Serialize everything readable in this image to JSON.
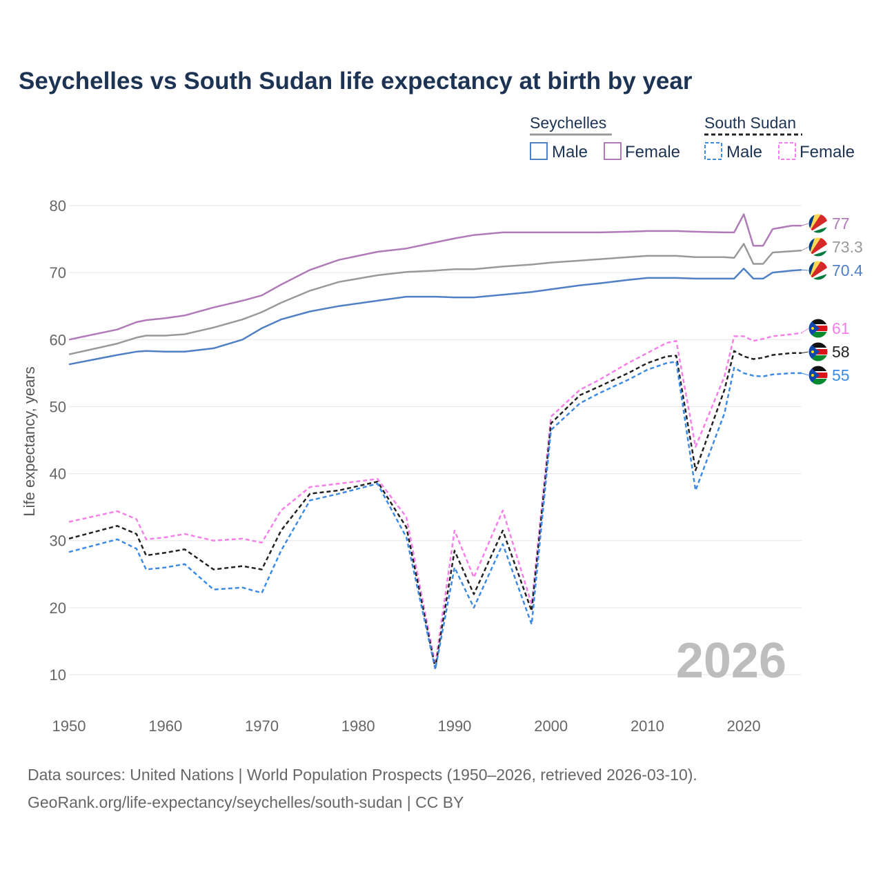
{
  "chart_data": {
    "type": "line",
    "title": "Seychelles vs South Sudan life expectancy at birth by year",
    "ylabel": "Life expectancy, years",
    "xlabel": "",
    "xlim": [
      1950,
      2026
    ],
    "ylim": [
      10,
      80
    ],
    "x_ticks": [
      "1950",
      "1960",
      "1970",
      "1980",
      "1990",
      "2000",
      "2010",
      "2020"
    ],
    "y_ticks": [
      "10",
      "20",
      "30",
      "40",
      "50",
      "60",
      "70",
      "80"
    ],
    "watermark_year": "2026",
    "legend": {
      "groups": [
        {
          "name": "Seychelles",
          "items": [
            "Male",
            "Female"
          ],
          "style": "solid"
        },
        {
          "name": "South Sudan",
          "items": [
            "Male",
            "Female"
          ],
          "style": "dashed"
        }
      ]
    },
    "x_anchor": [
      1950,
      1955,
      1957,
      1958,
      1960,
      1962,
      1965,
      1968,
      1970,
      1972,
      1975,
      1978,
      1982,
      1985,
      1988,
      1990,
      1992,
      1995,
      1998,
      2000,
      2003,
      2005,
      2008,
      2010,
      2012,
      2013,
      2015,
      2018,
      2019,
      2020,
      2021,
      2022,
      2023,
      2025,
      2026
    ],
    "series": [
      {
        "name": "Seychelles Female",
        "country": "Seychelles",
        "sex": "Female",
        "color": "#b07ab8",
        "dash": "solid",
        "end_label": "77",
        "values": [
          60.0,
          61.5,
          62.6,
          62.9,
          63.2,
          63.6,
          64.8,
          65.8,
          66.6,
          68.2,
          70.4,
          71.9,
          73.1,
          73.6,
          74.5,
          75.1,
          75.6,
          76.0,
          76.0,
          76.0,
          76.0,
          76.0,
          76.1,
          76.2,
          76.2,
          76.2,
          76.1,
          76.0,
          76.0,
          78.7,
          74.0,
          74.0,
          76.5,
          77.0,
          77.0
        ]
      },
      {
        "name": "Seychelles Both",
        "country": "Seychelles",
        "sex": "Both",
        "color": "#999999",
        "dash": "solid",
        "end_label": "73.3",
        "values": [
          57.8,
          59.4,
          60.3,
          60.6,
          60.6,
          60.8,
          61.8,
          63.0,
          64.1,
          65.5,
          67.3,
          68.6,
          69.6,
          70.1,
          70.3,
          70.5,
          70.5,
          70.9,
          71.2,
          71.5,
          71.8,
          72.0,
          72.3,
          72.5,
          72.5,
          72.5,
          72.3,
          72.3,
          72.2,
          74.3,
          71.3,
          71.3,
          73.0,
          73.2,
          73.3
        ]
      },
      {
        "name": "Seychelles Male",
        "country": "Seychelles",
        "sex": "Male",
        "color": "#4f7fc4",
        "dash": "solid",
        "end_label": "70.4",
        "values": [
          56.3,
          57.7,
          58.2,
          58.3,
          58.2,
          58.2,
          58.7,
          60.0,
          61.7,
          63.0,
          64.2,
          65.0,
          65.8,
          66.4,
          66.4,
          66.3,
          66.3,
          66.7,
          67.1,
          67.5,
          68.1,
          68.4,
          68.9,
          69.2,
          69.2,
          69.2,
          69.1,
          69.1,
          69.1,
          70.6,
          69.1,
          69.1,
          70.0,
          70.3,
          70.4
        ]
      },
      {
        "name": "South Sudan Female",
        "country": "South Sudan",
        "sex": "Female",
        "color": "#f47fe8",
        "dash": "dashed",
        "end_label": "61",
        "values": [
          32.8,
          34.4,
          33.2,
          30.2,
          30.5,
          31.0,
          30.0,
          30.3,
          29.7,
          34.5,
          38.0,
          38.5,
          39.2,
          33.5,
          11.5,
          31.5,
          24.5,
          34.5,
          20.5,
          48.5,
          52.5,
          54.0,
          56.5,
          58.0,
          59.5,
          59.8,
          44.0,
          54.5,
          60.5,
          60.5,
          59.8,
          60.1,
          60.5,
          60.8,
          61.0
        ]
      },
      {
        "name": "South Sudan Both",
        "country": "South Sudan",
        "sex": "Both",
        "color": "#222222",
        "dash": "dashed",
        "end_label": "58",
        "values": [
          30.3,
          32.2,
          31.0,
          27.8,
          28.2,
          28.7,
          25.7,
          26.2,
          25.7,
          31.5,
          37.0,
          37.5,
          38.8,
          32.0,
          11.0,
          28.5,
          22.0,
          31.5,
          19.5,
          47.5,
          51.7,
          53.0,
          55.0,
          56.5,
          57.5,
          57.6,
          40.5,
          52.5,
          58.3,
          57.5,
          57.1,
          57.3,
          57.7,
          58.0,
          58.0
        ]
      },
      {
        "name": "South Sudan Male",
        "country": "South Sudan",
        "sex": "Male",
        "color": "#3d8ae4",
        "dash": "dashed",
        "end_label": "55",
        "values": [
          28.3,
          30.2,
          28.8,
          25.7,
          26.0,
          26.5,
          22.7,
          23.0,
          22.2,
          28.5,
          36.0,
          37.0,
          38.5,
          30.5,
          10.8,
          26.0,
          20.0,
          29.5,
          17.5,
          46.5,
          50.5,
          52.0,
          54.0,
          55.5,
          56.5,
          56.7,
          37.5,
          49.0,
          55.8,
          55.0,
          54.6,
          54.5,
          54.8,
          55.0,
          55.0
        ]
      }
    ]
  },
  "source": {
    "line1": "Data sources: United Nations | World Population Prospects (1950–2026, retrieved 2026-03-10).",
    "line2": "GeoRank.org/life-expectancy/seychelles/south-sudan | CC BY"
  }
}
